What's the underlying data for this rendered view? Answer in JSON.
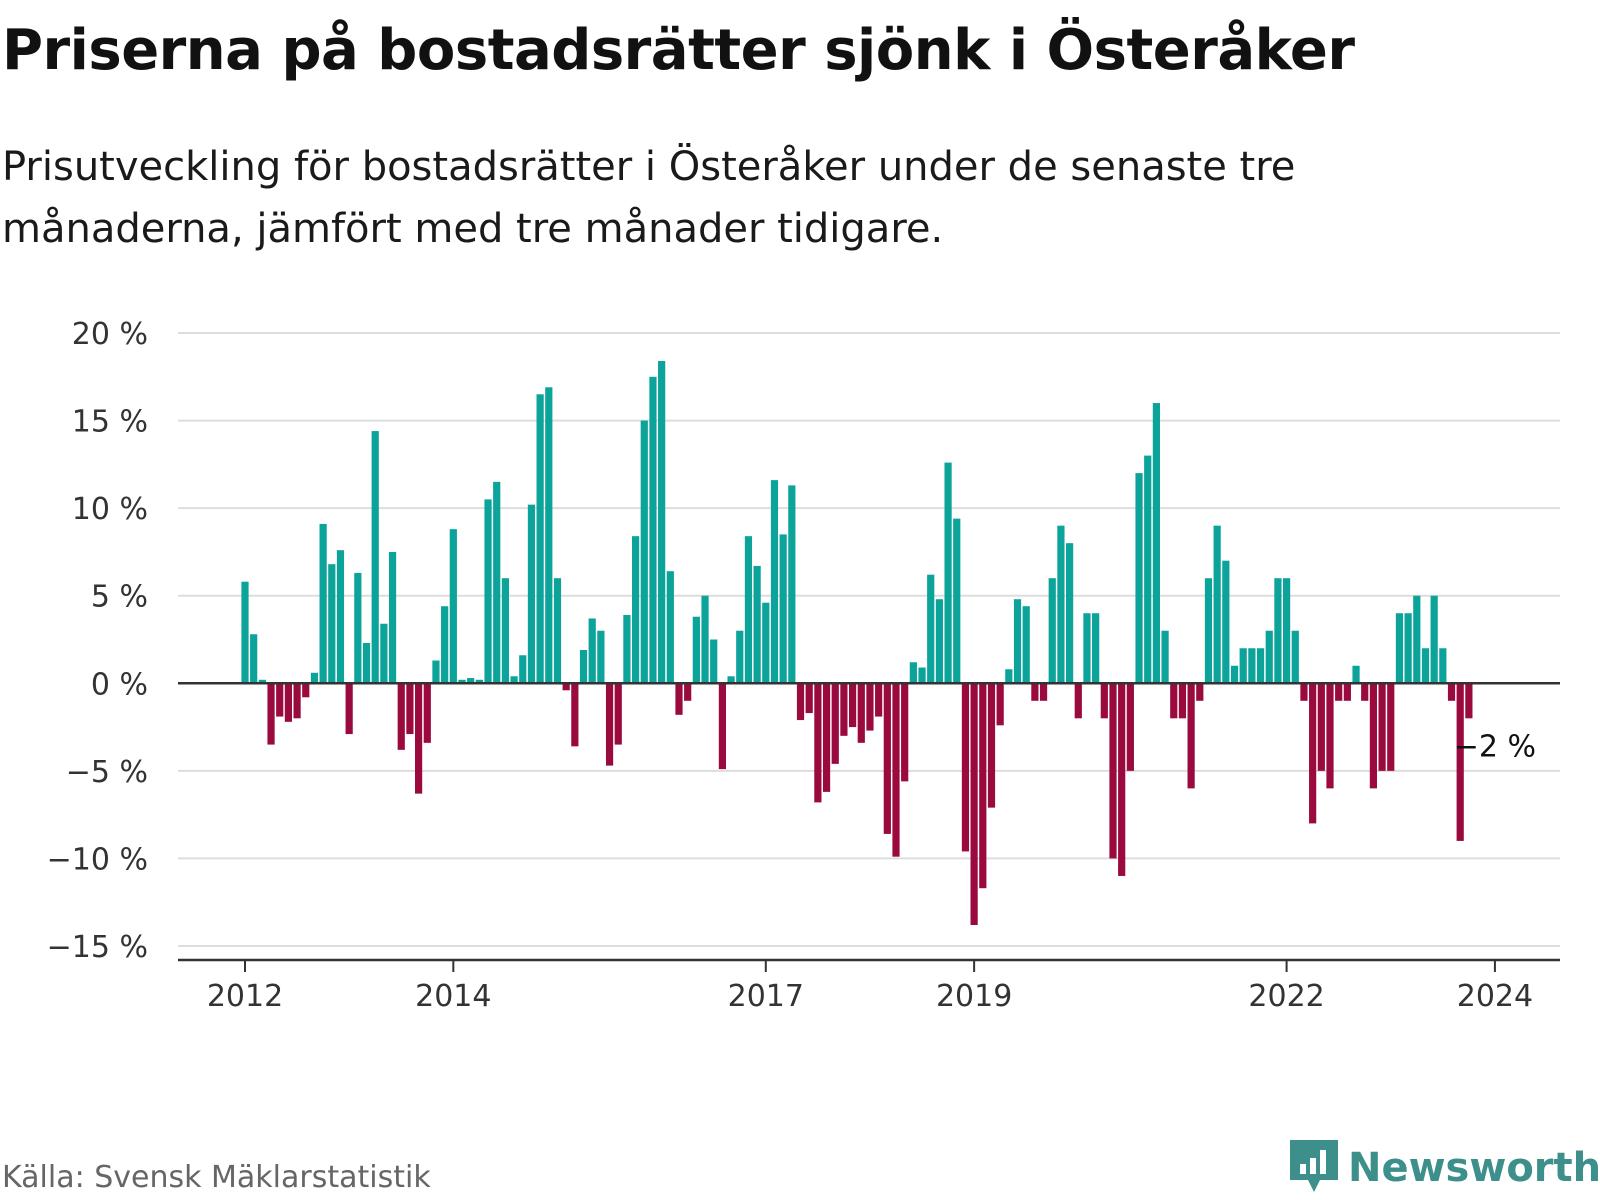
{
  "title": "Priserna på bostadsrätter sjönk i Österåker",
  "subtitle": "Prisutveckling för bostadsrätter i Österåker under de senaste tre månaderna, jämfört med tre månader tidigare.",
  "source": "Källa: Svensk Mäklarstatistik",
  "brand": {
    "name": "Newsworthy",
    "icon": "newsworthy-logo-icon",
    "color": "#3d8f8c"
  },
  "colors": {
    "positive": "#0ba39a",
    "negative": "#9b0a3f",
    "grid": "#dddddd",
    "axis": "#333333"
  },
  "chart_data": {
    "type": "bar",
    "x_start": "2012-01",
    "frequency": "monthly",
    "ylabel": "%",
    "ylim": [
      -15,
      20
    ],
    "yticks": [
      20,
      15,
      10,
      5,
      0,
      -5,
      -10,
      -15
    ],
    "ytick_labels": [
      "20 %",
      "15 %",
      "10 %",
      "5 %",
      "0 %",
      "−5 %",
      "−10 %",
      "−15 %"
    ],
    "xtick_labels": [
      {
        "label": "2012",
        "index": 0
      },
      {
        "label": "2014",
        "index": 24
      },
      {
        "label": "2017",
        "index": 60
      },
      {
        "label": "2019",
        "index": 84
      },
      {
        "label": "2022",
        "index": 120
      },
      {
        "label": "2024",
        "index": 144
      }
    ],
    "values": [
      5.8,
      2.8,
      0.2,
      -3.5,
      -1.9,
      -2.2,
      -2.0,
      -0.8,
      0.6,
      9.1,
      6.8,
      7.6,
      -2.9,
      6.3,
      2.3,
      14.4,
      3.4,
      7.5,
      -3.8,
      -2.9,
      -6.3,
      -3.4,
      1.3,
      4.4,
      8.8,
      0.2,
      0.3,
      0.2,
      10.5,
      11.5,
      6.0,
      0.4,
      1.6,
      10.2,
      16.5,
      16.9,
      6.0,
      -0.4,
      -3.6,
      1.9,
      3.7,
      3.0,
      -4.7,
      -3.5,
      3.9,
      8.4,
      15.0,
      17.5,
      18.4,
      6.4,
      -1.8,
      -1.0,
      3.8,
      5.0,
      2.5,
      -4.9,
      0.4,
      3.0,
      8.4,
      6.7,
      4.6,
      11.6,
      8.5,
      11.3,
      -2.1,
      -1.7,
      -6.8,
      -6.2,
      -4.6,
      -3.0,
      -2.5,
      -3.4,
      -2.7,
      -1.9,
      -8.6,
      -9.9,
      -5.6,
      1.2,
      0.9,
      6.2,
      4.8,
      12.6,
      9.4,
      -9.6,
      -13.8,
      -11.7,
      -7.1,
      -2.4,
      0.8,
      4.8,
      4.4,
      -1.0,
      -1.0,
      6.0,
      9.0,
      8.0,
      -2.0,
      4.0,
      4.0,
      -2.0,
      -10.0,
      -11.0,
      -5.0,
      12.0,
      13.0,
      16.0,
      3.0,
      -2.0,
      -2.0,
      -6.0,
      -1.0,
      6.0,
      9.0,
      7.0,
      1.0,
      2.0,
      2.0,
      2.0,
      3.0,
      6.0,
      6.0,
      3.0,
      -1.0,
      -8.0,
      -5.0,
      -6.0,
      -1.0,
      -1.0,
      1.0,
      -1.0,
      -6.0,
      -5.0,
      -5.0,
      4.0,
      4.0,
      5.0,
      2.0,
      5.0,
      2.0,
      -1.0,
      -9.0,
      -2.0
    ],
    "annotation": {
      "label": "−2 %",
      "index": 144
    }
  }
}
